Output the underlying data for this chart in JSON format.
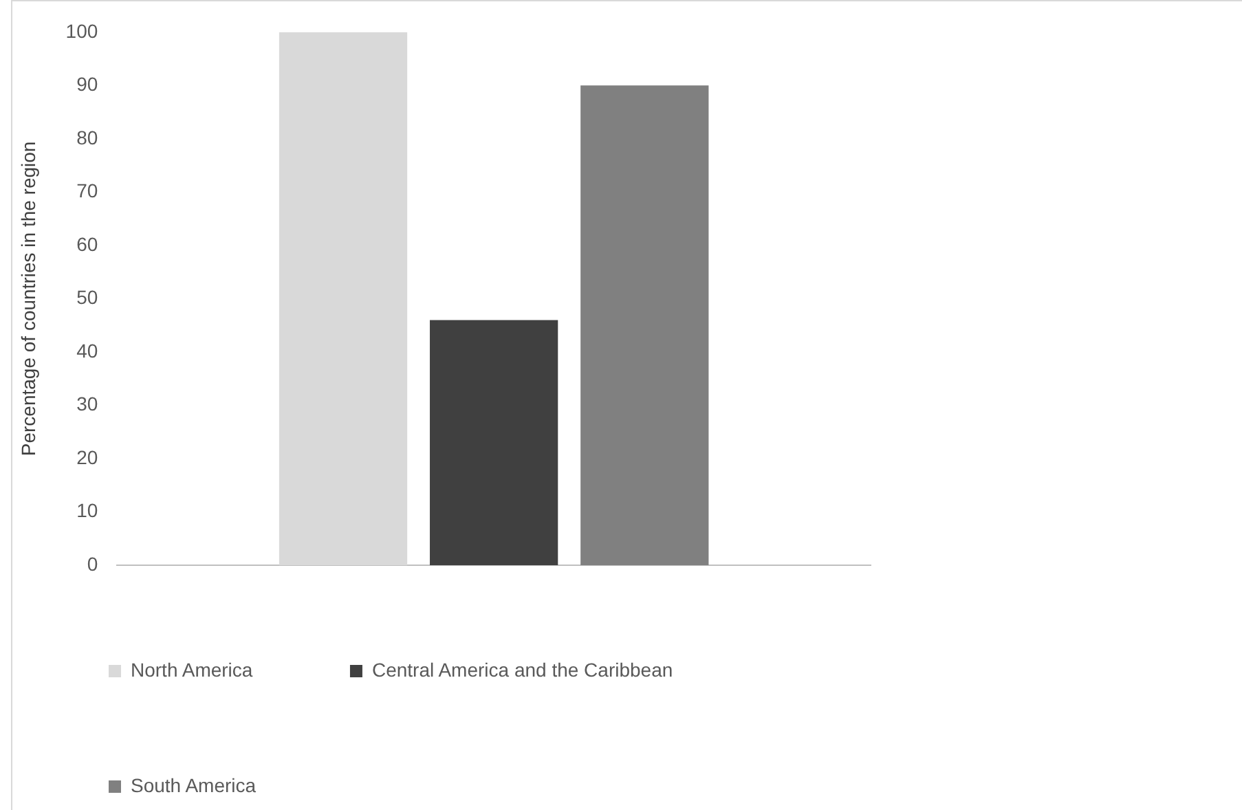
{
  "chart_data": {
    "type": "bar",
    "ylabel": "Percentage of countries in the region",
    "categories": [
      null
    ],
    "series": [
      {
        "name": "North America",
        "color": "#d9d9d9",
        "values": [
          100
        ]
      },
      {
        "name": "Central America and the Caribbean",
        "color": "#404040",
        "values": [
          46
        ]
      },
      {
        "name": "South America",
        "color": "#808080",
        "values": [
          90
        ]
      }
    ],
    "ylim": [
      0,
      100
    ],
    "yticks": [
      0,
      10,
      20,
      30,
      40,
      50,
      60,
      70,
      80,
      90,
      100
    ],
    "grid": false,
    "legend": "bottom"
  }
}
